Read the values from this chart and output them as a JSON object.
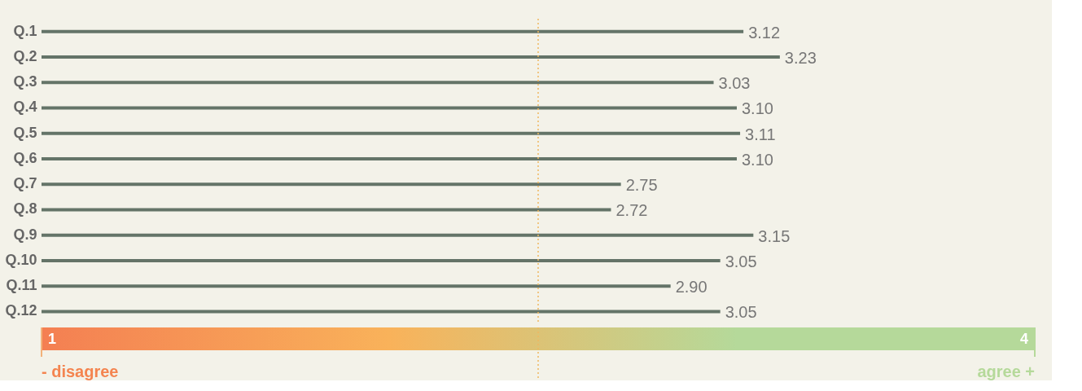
{
  "chart_data": {
    "type": "bar",
    "orientation": "horizontal",
    "categories": [
      "Q.1",
      "Q.2",
      "Q.3",
      "Q.4",
      "Q.5",
      "Q.6",
      "Q.7",
      "Q.8",
      "Q.9",
      "Q.10",
      "Q.11",
      "Q.12"
    ],
    "values": [
      3.12,
      3.23,
      3.03,
      3.1,
      3.11,
      3.1,
      2.75,
      2.72,
      3.15,
      3.05,
      2.9,
      3.05
    ],
    "value_labels": [
      "3.12",
      "3.23",
      "3.03",
      "3.10",
      "3.11",
      "3.10",
      "2.75",
      "2.72",
      "3.15",
      "3.05",
      "2.90",
      "3.05"
    ],
    "color": "#647468",
    "xlim": [
      1,
      4
    ],
    "xticks": [
      1,
      4
    ],
    "ref_lines": [
      {
        "axis": "x",
        "value": 2.5,
        "color": "#f0b860",
        "line_style": "dotted"
      }
    ],
    "annotations": [
      "- disagree",
      "agree +"
    ],
    "grid": false
  }
}
